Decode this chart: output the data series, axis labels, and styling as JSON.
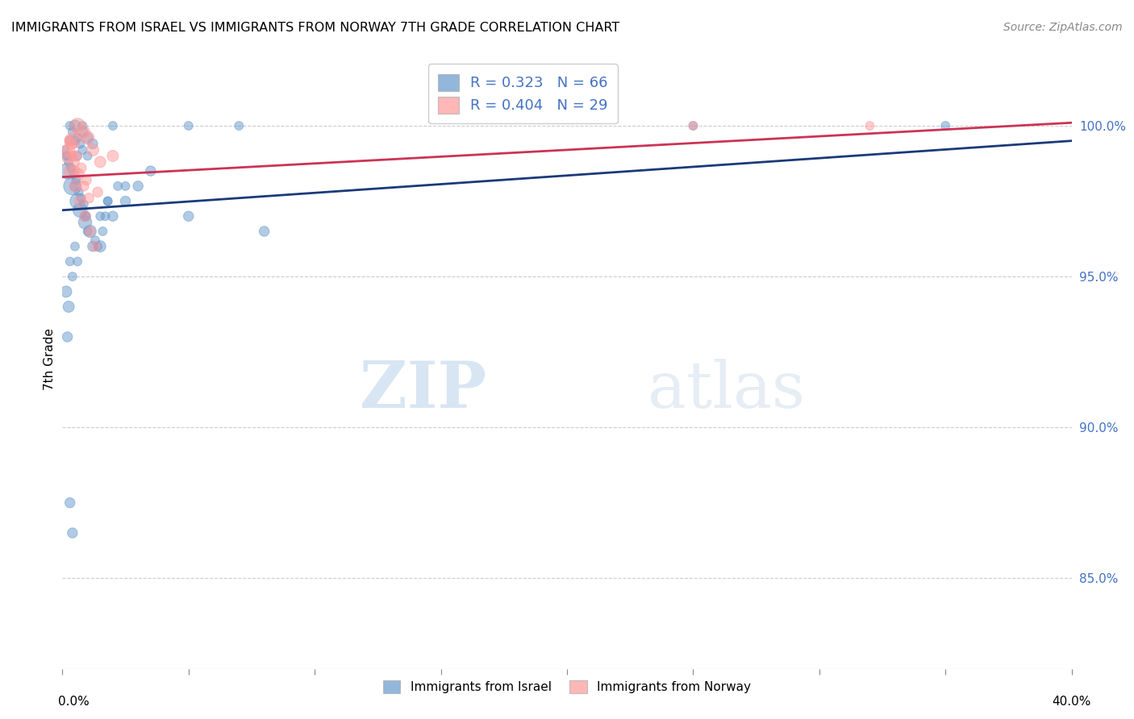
{
  "title": "IMMIGRANTS FROM ISRAEL VS IMMIGRANTS FROM NORWAY 7TH GRADE CORRELATION CHART",
  "source": "Source: ZipAtlas.com",
  "ylabel": "7th Grade",
  "xlim": [
    0.0,
    40.0
  ],
  "ylim": [
    82.0,
    102.5
  ],
  "yticks": [
    85.0,
    90.0,
    95.0,
    100.0
  ],
  "ytick_labels": [
    "85.0%",
    "90.0%",
    "95.0%",
    "100.0%"
  ],
  "blue_color": "#6699CC",
  "pink_color": "#FF9999",
  "blue_line_color": "#1A3A7A",
  "pink_line_color": "#CC3355",
  "watermark_zip": "ZIP",
  "watermark_atlas": "atlas",
  "blue_scatter_x": [
    0.3,
    0.5,
    0.8,
    1.0,
    1.2,
    0.2,
    0.4,
    0.6,
    0.7,
    0.9,
    1.1,
    1.5,
    2.0,
    2.5,
    3.0,
    0.15,
    0.25,
    0.35,
    0.45,
    0.55,
    0.65,
    0.75,
    0.85,
    0.95,
    1.3,
    1.4,
    1.6,
    1.7,
    1.8,
    2.2,
    3.5,
    5.0,
    8.0,
    0.1,
    0.2,
    0.3,
    0.4,
    0.6,
    0.7,
    0.8,
    1.0,
    0.5,
    0.9,
    1.2,
    1.8,
    2.5,
    0.3,
    0.4,
    0.15,
    0.25,
    0.5,
    0.6,
    1.0,
    1.5,
    25.0,
    35.0,
    0.2,
    0.3,
    0.4,
    0.8,
    2.0,
    5.0,
    7.0,
    0.5,
    0.6
  ],
  "blue_scatter_y": [
    99.5,
    100.0,
    99.8,
    99.6,
    99.4,
    98.5,
    98.0,
    97.5,
    97.2,
    96.8,
    96.5,
    96.0,
    97.0,
    97.5,
    98.0,
    99.0,
    98.8,
    98.6,
    98.4,
    98.2,
    97.8,
    97.6,
    97.4,
    97.0,
    96.2,
    96.0,
    96.5,
    97.0,
    97.5,
    98.0,
    98.5,
    97.0,
    96.5,
    99.2,
    99.0,
    100.0,
    99.8,
    99.6,
    99.4,
    99.2,
    99.0,
    98.0,
    97.0,
    96.0,
    97.5,
    98.0,
    95.5,
    95.0,
    94.5,
    94.0,
    96.0,
    95.5,
    96.5,
    97.0,
    100.0,
    100.0,
    93.0,
    87.5,
    86.5,
    100.0,
    100.0,
    100.0,
    100.0,
    99.5,
    99.0
  ],
  "pink_scatter_x": [
    0.2,
    0.4,
    0.6,
    0.8,
    1.0,
    1.2,
    1.5,
    2.0,
    0.3,
    0.5,
    0.7,
    0.9,
    1.1,
    1.3,
    0.25,
    0.45,
    0.65,
    0.85,
    1.05,
    0.35,
    0.55,
    0.75,
    0.95,
    1.4,
    25.0,
    32.0,
    0.3,
    0.4,
    0.5
  ],
  "pink_scatter_y": [
    99.0,
    99.5,
    100.0,
    99.8,
    99.6,
    99.2,
    98.8,
    99.0,
    98.5,
    98.0,
    97.5,
    97.0,
    96.5,
    96.0,
    99.2,
    98.8,
    98.4,
    98.0,
    97.6,
    99.4,
    99.0,
    98.6,
    98.2,
    97.8,
    100.0,
    100.0,
    99.5,
    99.0,
    98.5
  ],
  "blue_sizes": [
    80,
    100,
    90,
    85,
    80,
    200,
    250,
    180,
    160,
    140,
    120,
    100,
    80,
    80,
    80,
    60,
    60,
    60,
    60,
    60,
    60,
    60,
    60,
    60,
    60,
    60,
    60,
    60,
    60,
    60,
    80,
    80,
    80,
    60,
    60,
    60,
    60,
    60,
    60,
    60,
    60,
    80,
    80,
    80,
    60,
    60,
    60,
    60,
    100,
    100,
    60,
    60,
    60,
    60,
    60,
    60,
    80,
    80,
    80,
    60,
    60,
    60,
    60,
    60,
    60
  ],
  "pink_sizes": [
    150,
    200,
    180,
    160,
    140,
    120,
    100,
    100,
    120,
    110,
    100,
    90,
    80,
    80,
    120,
    100,
    90,
    80,
    80,
    100,
    90,
    80,
    80,
    80,
    60,
    60,
    80,
    80,
    80
  ],
  "blue_trend": [
    97.2,
    99.5
  ],
  "pink_trend": [
    98.3,
    100.1
  ],
  "xtick_positions": [
    0,
    5,
    10,
    15,
    20,
    25,
    30,
    35,
    40
  ]
}
